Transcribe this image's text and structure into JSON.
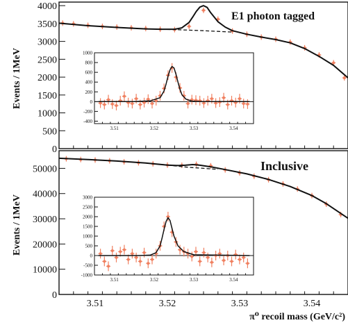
{
  "chart_data": [
    {
      "id": "top",
      "type": "scatter",
      "title": "E1 photon tagged",
      "ylabel": "Events / 1MeV",
      "xlabel": "",
      "xlim": [
        3.505,
        3.545
      ],
      "ylim": [
        0,
        4100
      ],
      "x_ticks": [],
      "y_ticks": [
        0,
        500,
        1000,
        1500,
        2000,
        2500,
        3000,
        3500,
        4000
      ],
      "series": [
        {
          "style": "points",
          "x": [
            3.5055,
            3.507,
            3.509,
            3.511,
            3.513,
            3.515,
            3.517,
            3.519,
            3.521,
            3.523,
            3.525,
            3.527,
            3.529,
            3.531,
            3.533,
            3.535,
            3.537,
            3.539,
            3.541,
            3.543,
            3.5445
          ],
          "y": [
            3510,
            3490,
            3450,
            3420,
            3400,
            3380,
            3360,
            3340,
            3330,
            3420,
            3870,
            3620,
            3290,
            3200,
            3120,
            3060,
            2980,
            2820,
            2620,
            2400,
            1980
          ]
        },
        {
          "style": "solid-fit",
          "x": [
            3.505,
            3.509,
            3.513,
            3.517,
            3.519,
            3.521,
            3.522,
            3.523,
            3.5235,
            3.524,
            3.5245,
            3.525,
            3.5255,
            3.526,
            3.527,
            3.528,
            3.529,
            3.531,
            3.533,
            3.535,
            3.537,
            3.539,
            3.541,
            3.543,
            3.545
          ],
          "y": [
            3510,
            3440,
            3390,
            3350,
            3340,
            3340,
            3380,
            3530,
            3680,
            3840,
            3960,
            4000,
            3950,
            3800,
            3550,
            3400,
            3300,
            3200,
            3120,
            3050,
            2960,
            2800,
            2580,
            2330,
            1980
          ]
        },
        {
          "style": "dashed-background",
          "x": [
            3.513,
            3.517,
            3.519,
            3.521,
            3.523,
            3.525,
            3.527,
            3.529
          ],
          "y": [
            3390,
            3350,
            3340,
            3330,
            3315,
            3300,
            3280,
            3260
          ]
        }
      ]
    },
    {
      "id": "top-inset",
      "type": "scatter",
      "xlim": [
        3.505,
        3.545
      ],
      "ylim": [
        -450,
        1000
      ],
      "x_ticks": [
        3.51,
        3.52,
        3.53,
        3.54
      ],
      "y_ticks": [
        -400,
        -200,
        0,
        200,
        400,
        600,
        800,
        1000
      ],
      "series": [
        {
          "style": "points",
          "x": [
            3.5065,
            3.5075,
            3.5085,
            3.5095,
            3.5105,
            3.5115,
            3.5125,
            3.5135,
            3.5145,
            3.5155,
            3.5165,
            3.5175,
            3.5185,
            3.5195,
            3.5205,
            3.5215,
            3.5225,
            3.5235,
            3.5245,
            3.5255,
            3.5265,
            3.5275,
            3.5285,
            3.5295,
            3.5305,
            3.5315,
            3.5325,
            3.5335,
            3.5345,
            3.5355,
            3.5365,
            3.5375,
            3.5385,
            3.5395,
            3.5405,
            3.5415,
            3.5425,
            3.5435
          ],
          "y": [
            -30,
            -60,
            40,
            -50,
            -80,
            20,
            110,
            -20,
            -40,
            60,
            -60,
            -20,
            50,
            -40,
            20,
            120,
            270,
            540,
            690,
            500,
            280,
            120,
            -40,
            40,
            30,
            20,
            -30,
            20,
            60,
            -30,
            -10,
            80,
            -60,
            20,
            -20,
            60,
            -40,
            -50
          ]
        },
        {
          "style": "solid-fit",
          "x": [
            3.506,
            3.515,
            3.519,
            3.5215,
            3.5225,
            3.523,
            3.5235,
            3.524,
            3.5245,
            3.525,
            3.5255,
            3.526,
            3.5265,
            3.527,
            3.528,
            3.5295,
            3.532,
            3.544
          ],
          "y": [
            0,
            0,
            15,
            80,
            220,
            360,
            520,
            650,
            720,
            690,
            560,
            400,
            250,
            140,
            50,
            10,
            0,
            0
          ]
        }
      ]
    },
    {
      "id": "bottom",
      "type": "scatter",
      "title": "Inclusive",
      "ylabel": "Events / 1MeV",
      "xlabel": "π⁰ recoil mass (GeV/c²)",
      "xlim": [
        3.505,
        3.545
      ],
      "ylim": [
        0,
        57000
      ],
      "x_ticks": [
        3.51,
        3.52,
        3.53,
        3.54
      ],
      "y_ticks": [
        0,
        10000,
        20000,
        30000,
        40000,
        50000
      ],
      "series": [
        {
          "style": "points",
          "x": [
            3.506,
            3.508,
            3.51,
            3.512,
            3.514,
            3.516,
            3.518,
            3.52,
            3.522,
            3.524,
            3.526,
            3.528,
            3.53,
            3.532,
            3.534,
            3.536,
            3.538,
            3.54,
            3.542,
            3.544
          ],
          "y": [
            53800,
            53500,
            53300,
            53000,
            52600,
            52200,
            51800,
            51300,
            51200,
            51600,
            51000,
            49400,
            48200,
            46900,
            45500,
            43800,
            41800,
            39200,
            35800,
            31700
          ]
        },
        {
          "style": "solid-fit",
          "x": [
            3.505,
            3.509,
            3.513,
            3.517,
            3.52,
            3.5215,
            3.5225,
            3.5235,
            3.5245,
            3.526,
            3.528,
            3.531,
            3.534,
            3.537,
            3.54,
            3.542,
            3.545
          ],
          "y": [
            54000,
            53500,
            52900,
            52100,
            51300,
            51100,
            51250,
            51500,
            51250,
            50600,
            49500,
            47800,
            45600,
            42800,
            39200,
            36000,
            30200
          ]
        },
        {
          "style": "dashed-background",
          "x": [
            3.517,
            3.519,
            3.521,
            3.523,
            3.525,
            3.527
          ],
          "y": [
            52100,
            51600,
            51000,
            50400,
            50000,
            49600
          ]
        }
      ]
    },
    {
      "id": "bottom-inset",
      "type": "scatter",
      "xlim": [
        3.505,
        3.545
      ],
      "ylim": [
        -1000,
        3000
      ],
      "x_ticks": [
        3.51,
        3.52,
        3.53,
        3.54
      ],
      "y_ticks": [
        -1000,
        -500,
        0,
        500,
        1000,
        1500,
        2000,
        2500,
        3000
      ],
      "series": [
        {
          "style": "points",
          "x": [
            3.5065,
            3.5075,
            3.5085,
            3.5095,
            3.5105,
            3.5115,
            3.5125,
            3.5135,
            3.5145,
            3.5155,
            3.5165,
            3.5175,
            3.5185,
            3.5195,
            3.5205,
            3.5215,
            3.5225,
            3.5235,
            3.5245,
            3.5255,
            3.5265,
            3.5275,
            3.5285,
            3.5295,
            3.5305,
            3.5315,
            3.5325,
            3.5335,
            3.5345,
            3.5355,
            3.5365,
            3.5375,
            3.5385,
            3.5395,
            3.5405,
            3.5415,
            3.5425,
            3.5435
          ],
          "y": [
            100,
            -300,
            -550,
            250,
            -100,
            200,
            300,
            -200,
            100,
            -100,
            -300,
            150,
            -400,
            -200,
            100,
            500,
            1500,
            2000,
            1200,
            700,
            300,
            200,
            100,
            -50,
            200,
            -300,
            150,
            -100,
            -350,
            0,
            100,
            -250,
            0,
            -300,
            50,
            -200,
            -100,
            -400
          ]
        },
        {
          "style": "solid-fit",
          "x": [
            3.506,
            3.516,
            3.519,
            3.5205,
            3.5215,
            3.522,
            3.5225,
            3.523,
            3.5235,
            3.524,
            3.5245,
            3.525,
            3.526,
            3.5275,
            3.53,
            3.544
          ],
          "y": [
            0,
            0,
            20,
            150,
            500,
            900,
            1350,
            1750,
            1950,
            1800,
            1400,
            1000,
            500,
            200,
            40,
            0
          ]
        }
      ]
    }
  ]
}
